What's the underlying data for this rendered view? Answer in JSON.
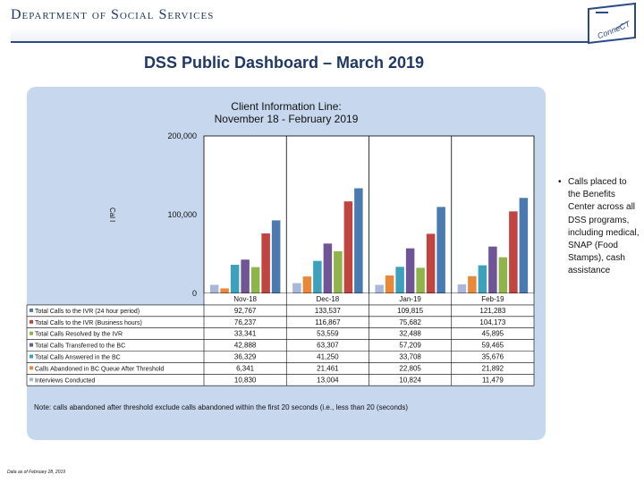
{
  "header": {
    "department_title": "Department of Social Services",
    "logo_text": "ConneCT"
  },
  "dashboard_title": "DSS Public Dashboard – March 2019",
  "chart_data": {
    "type": "bar",
    "title": "Client Information Line:",
    "subtitle": "November 18  - February 2019",
    "ylabel": "Cal l",
    "xlabel": "",
    "ylim": [
      0,
      200000
    ],
    "yticks": [
      0,
      100000,
      200000
    ],
    "ytick_labels": [
      "0",
      "100,000",
      "200,000"
    ],
    "categories": [
      "Nov-18",
      "Dec-18",
      "Jan-19",
      "Feb-19"
    ],
    "grid": false,
    "series": [
      {
        "name": "Total Calls to the IVR (24 hour period)",
        "color": "#4a7ab0",
        "values": [
          92767,
          133537,
          109815,
          121283
        ],
        "labels": [
          "92,767",
          "133,537",
          "109,815",
          "121,283"
        ]
      },
      {
        "name": "Total Calls to the IVR (Business hours)",
        "color": "#c0443f",
        "values": [
          76237,
          116867,
          75682,
          104173
        ],
        "labels": [
          "76,237",
          "116,867",
          "75,682",
          "104,173"
        ]
      },
      {
        "name": "Total Calls Resolved by the IVR",
        "color": "#8fb54a",
        "values": [
          33341,
          53559,
          32488,
          45895
        ],
        "labels": [
          "33,341",
          "53,559",
          "32,488",
          "45,895"
        ]
      },
      {
        "name": "Total Calls Transferred to the BC",
        "color": "#6f5596",
        "values": [
          42888,
          63307,
          57209,
          59465
        ],
        "labels": [
          "42,888",
          "63,307",
          "57,209",
          "59,465"
        ]
      },
      {
        "name": "Total Calls Answered in the BC",
        "color": "#3ea1bb",
        "values": [
          36329,
          41250,
          33708,
          35676
        ],
        "labels": [
          "36,329",
          "41,250",
          "33,708",
          "35,676"
        ]
      },
      {
        "name": "Calls Abandoned in BC Queue After Threshold",
        "color": "#e8893a",
        "values": [
          6341,
          21461,
          22805,
          21892
        ],
        "labels": [
          "6,341",
          "21,461",
          "22,805",
          "21,892"
        ]
      },
      {
        "name": "Interviews Conducted",
        "color": "#a9b8da",
        "values": [
          10830,
          13004,
          10824,
          11479
        ],
        "labels": [
          "10,830",
          "13,004",
          "10,824",
          "11,479"
        ]
      }
    ]
  },
  "note": "Note: calls abandoned after threshold exclude calls abandoned within the first 20 seconds (i.e., less than 20 (seconds)",
  "side_note": "Calls placed to the Benefits Center across all DSS programs, including medical, SNAP (Food Stamps), cash assistance",
  "footer": "Data as of February 28, 2019"
}
